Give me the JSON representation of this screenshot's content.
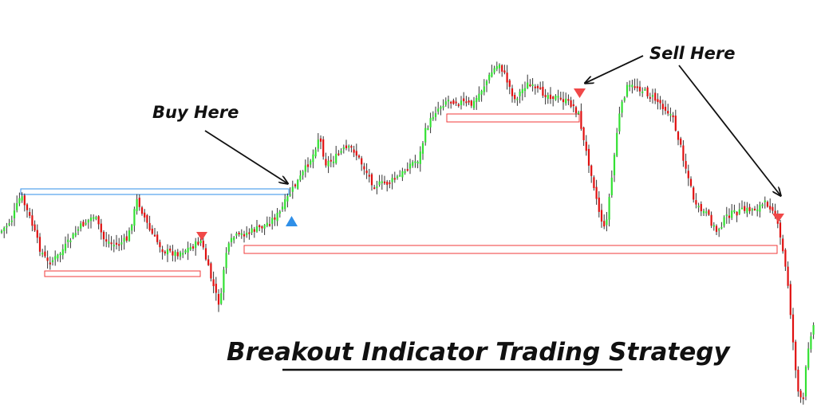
{
  "chart_data": {
    "type": "candlestick",
    "title": "Breakout Indicator Trading Strategy",
    "annotations": [
      {
        "text": "Buy Here",
        "signal": "buy"
      },
      {
        "text": "Sell Here",
        "signal": "sell"
      }
    ],
    "signal_markers": [
      {
        "type": "sell",
        "color": "#f04848"
      },
      {
        "type": "buy",
        "color": "#2f8fe8"
      },
      {
        "type": "sell",
        "color": "#f04848"
      },
      {
        "type": "sell",
        "color": "#f04848"
      }
    ],
    "levels": [
      {
        "kind": "support",
        "color": "#f03a3a"
      },
      {
        "kind": "resistance",
        "color": "#2f8fe8"
      },
      {
        "kind": "support",
        "color": "#f03a3a"
      },
      {
        "kind": "support",
        "color": "#f03a3a"
      }
    ],
    "colors": {
      "bull": "#33e033",
      "bear": "#e01010",
      "wick": "#333333"
    },
    "grid": false,
    "axes_visible": false
  }
}
